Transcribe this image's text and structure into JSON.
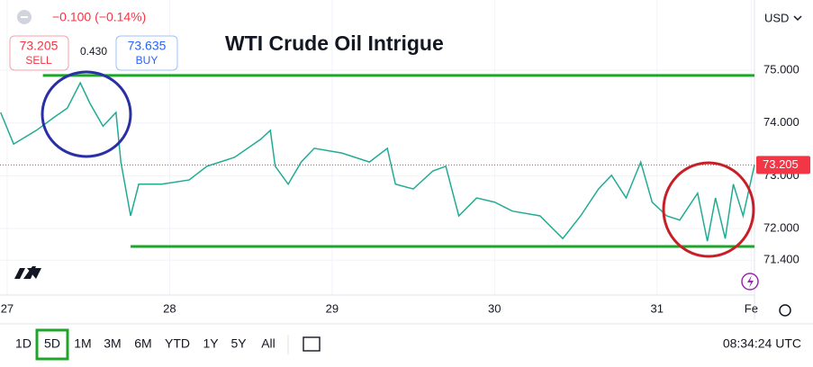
{
  "chart_data": {
    "type": "line",
    "title": "WTI Crude Oil Intrigue",
    "x": [
      26.96,
      27.04,
      27.18,
      27.29,
      27.37,
      27.45,
      27.51,
      27.59,
      27.67,
      27.7,
      27.76,
      27.81,
      27.95,
      28.12,
      28.23,
      28.4,
      28.56,
      28.62,
      28.65,
      28.73,
      28.81,
      28.89,
      29.06,
      29.23,
      29.34,
      29.39,
      29.5,
      29.62,
      29.7,
      29.78,
      29.89,
      30.0,
      30.11,
      30.28,
      30.42,
      30.53,
      30.64,
      30.72,
      30.81,
      30.9,
      30.97,
      31.06,
      31.14,
      31.25,
      31.31,
      31.36,
      31.42,
      31.47,
      31.53,
      31.6
    ],
    "series": [
      {
        "name": "WTI",
        "color": "#22ab94",
        "values": [
          74.2,
          73.6,
          73.86,
          74.11,
          74.28,
          74.76,
          74.37,
          73.94,
          74.2,
          73.26,
          72.24,
          72.84,
          72.84,
          72.92,
          73.18,
          73.35,
          73.69,
          73.86,
          73.18,
          72.84,
          73.26,
          73.52,
          73.43,
          73.26,
          73.52,
          72.84,
          72.75,
          73.09,
          73.18,
          72.24,
          72.58,
          72.5,
          72.33,
          72.24,
          71.81,
          72.24,
          72.75,
          73.01,
          72.58,
          73.26,
          72.5,
          72.24,
          72.16,
          72.67,
          71.76,
          72.58,
          71.81,
          72.84,
          72.24,
          73.205
        ]
      }
    ],
    "xlim": [
      26.956,
      31.6
    ],
    "xticks": [
      {
        "value": 27,
        "label": "27"
      },
      {
        "value": 28,
        "label": "28"
      },
      {
        "value": 29,
        "label": "29"
      },
      {
        "value": 30,
        "label": "30"
      },
      {
        "value": 31,
        "label": "31"
      },
      {
        "value": 31.58,
        "label": "Fe"
      }
    ],
    "ylim": [
      70.74,
      76.33
    ],
    "yticks": [
      {
        "value": 71.4,
        "label": "71.400"
      },
      {
        "value": 72,
        "label": "72.000"
      },
      {
        "value": 73,
        "label": "73.000"
      },
      {
        "value": 74,
        "label": "74.000"
      },
      {
        "value": 75,
        "label": "75.000"
      }
    ],
    "grid": true,
    "currency": "USD",
    "last_price": 73.205,
    "last_price_color": "#f23645",
    "levels": [
      {
        "value": 74.9,
        "start": 27.22,
        "color": "#1ea52a"
      },
      {
        "value": 71.66,
        "start": 27.76,
        "color": "#1ea52a"
      }
    ]
  },
  "header": {
    "change": "−0.100 (−0.14%)",
    "sell_price": "73.205",
    "sell_label": "SELL",
    "spread": "0.430",
    "buy_price": "73.635",
    "buy_label": "BUY"
  },
  "toolbar": {
    "ranges": [
      "1D",
      "5D",
      "1M",
      "3M",
      "6M",
      "YTD",
      "1Y",
      "5Y",
      "All"
    ],
    "time": "08:34:24 UTC"
  }
}
